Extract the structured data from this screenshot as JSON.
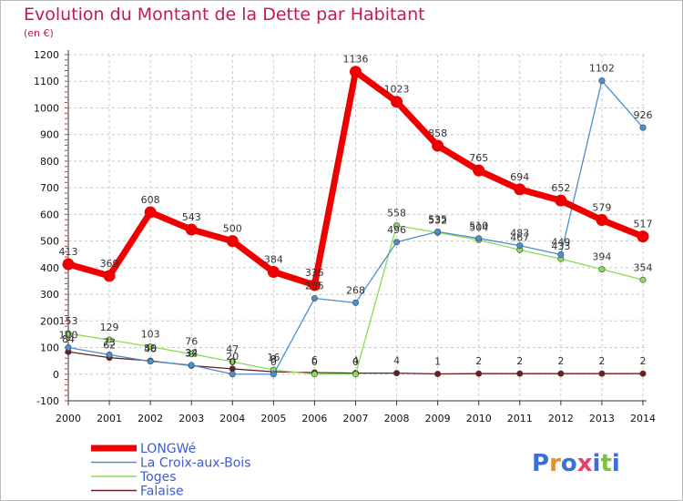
{
  "chart_data": {
    "type": "line",
    "title": "Evolution du Montant de la Dette par Habitant",
    "subtitle": "(en €)",
    "xlabel": "",
    "ylabel": "",
    "x": [
      "2000",
      "2001",
      "2002",
      "2003",
      "2004",
      "2005",
      "2006",
      "2007",
      "2008",
      "2009",
      "2010",
      "2011",
      "2012",
      "2013",
      "2014"
    ],
    "ylim": [
      -100,
      1200
    ],
    "yticks": [
      "-100",
      "0",
      "100",
      "200",
      "300",
      "400",
      "500",
      "600",
      "700",
      "800",
      "900",
      "1000",
      "1100",
      "1200"
    ],
    "grid": "horizontal dashed",
    "legend": "bottom-left",
    "series": [
      {
        "name": "LONGWé",
        "color": "#ee0000",
        "values": [
          413,
          369,
          608,
          543,
          500,
          384,
          335,
          1136,
          1023,
          858,
          765,
          694,
          652,
          579,
          517
        ],
        "labels": [
          "413",
          "369",
          "608",
          "543",
          "500",
          "384",
          "335",
          "1136",
          "1023",
          "858",
          "765",
          "694",
          "652",
          "579",
          "517"
        ]
      },
      {
        "name": "La Croix-aux-Bois",
        "color": "#4a8fd0",
        "values": [
          100,
          73,
          48,
          34,
          0,
          0,
          285,
          268,
          496,
          535,
          510,
          483,
          449,
          1102,
          926
        ],
        "labels": [
          "100",
          "73",
          "48",
          "34",
          "0",
          "0",
          "285",
          "268",
          "496",
          "535",
          "510",
          "483",
          "449",
          "1102",
          "926"
        ]
      },
      {
        "name": "Toges",
        "color": "#88dd55",
        "values": [
          153,
          129,
          103,
          76,
          47,
          16,
          0,
          0,
          558,
          532,
          504,
          467,
          433,
          394,
          354
        ],
        "labels": [
          "153",
          "129",
          "103",
          "76",
          "47",
          "16",
          "0",
          "0",
          "558",
          "532",
          "504",
          "467",
          "433",
          "394",
          "354"
        ]
      },
      {
        "name": "Falaise",
        "color": "#6b1f1f",
        "values": [
          84,
          62,
          50,
          32,
          20,
          9,
          6,
          4,
          4,
          1,
          2,
          2,
          2,
          2,
          2
        ],
        "labels": [
          "84",
          "62",
          "50",
          "32",
          "20",
          "9",
          "6",
          "4",
          "4",
          "1",
          "2",
          "2",
          "2",
          "2",
          "2"
        ]
      }
    ]
  },
  "colors": {
    "title": "#c2185b",
    "subtitle": "#c2185b",
    "legend_text": "#3d5ccf",
    "grid": "#c8c8c8",
    "axis": "#333333"
  },
  "brand": {
    "logo_text": "Proxiti",
    "logo_colors": [
      "#3a6fd8",
      "#f08c1a",
      "#3a6fd8",
      "#e83f6f",
      "#3a6fd8",
      "#7bc142",
      "#3a6fd8"
    ]
  }
}
